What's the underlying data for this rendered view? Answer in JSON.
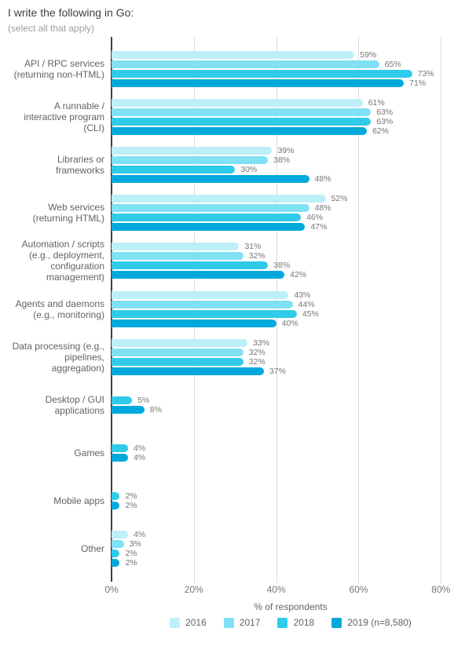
{
  "chart_data": {
    "type": "bar",
    "orientation": "horizontal",
    "title": "I write the following in Go:",
    "subtitle": "(select all that apply)",
    "xlabel": "% of respondents",
    "value_suffix": "%",
    "xlim": [
      0,
      87
    ],
    "xticks": [
      0,
      20,
      40,
      60,
      80
    ],
    "grid": true,
    "legend_position": "bottom",
    "series": [
      "2016",
      "2017",
      "2018",
      "2019 (n=8,580)"
    ],
    "series_colors": [
      "#BDEFF9",
      "#7FE1F3",
      "#2FCBE8",
      "#00A9DB"
    ],
    "categories": [
      {
        "label": "API / RPC services\n(returning non-HTML)",
        "values": [
          59,
          65,
          73,
          71
        ]
      },
      {
        "label": "A runnable /\ninteractive program\n(CLI)",
        "values": [
          61,
          63,
          63,
          62
        ]
      },
      {
        "label": "Libraries or\nframeworks",
        "values": [
          39,
          38,
          30,
          48
        ]
      },
      {
        "label": "Web services\n(returning HTML)",
        "values": [
          52,
          48,
          46,
          47
        ]
      },
      {
        "label": "Automation / scripts\n(e.g., deployment,\nconfiguration\nmanagement)",
        "values": [
          31,
          32,
          38,
          42
        ]
      },
      {
        "label": "Agents and daemons\n(e.g., monitoring)",
        "values": [
          43,
          44,
          45,
          40
        ]
      },
      {
        "label": "Data processing (e.g.,\npipelines,\naggregation)",
        "values": [
          33,
          32,
          32,
          37
        ]
      },
      {
        "label": "Desktop / GUI\napplications",
        "values": [
          null,
          null,
          5,
          8
        ]
      },
      {
        "label": "Games",
        "values": [
          null,
          null,
          4,
          4
        ]
      },
      {
        "label": "Mobile apps",
        "values": [
          null,
          null,
          2,
          2
        ]
      },
      {
        "label": "Other",
        "values": [
          4,
          3,
          2,
          2
        ]
      }
    ]
  }
}
